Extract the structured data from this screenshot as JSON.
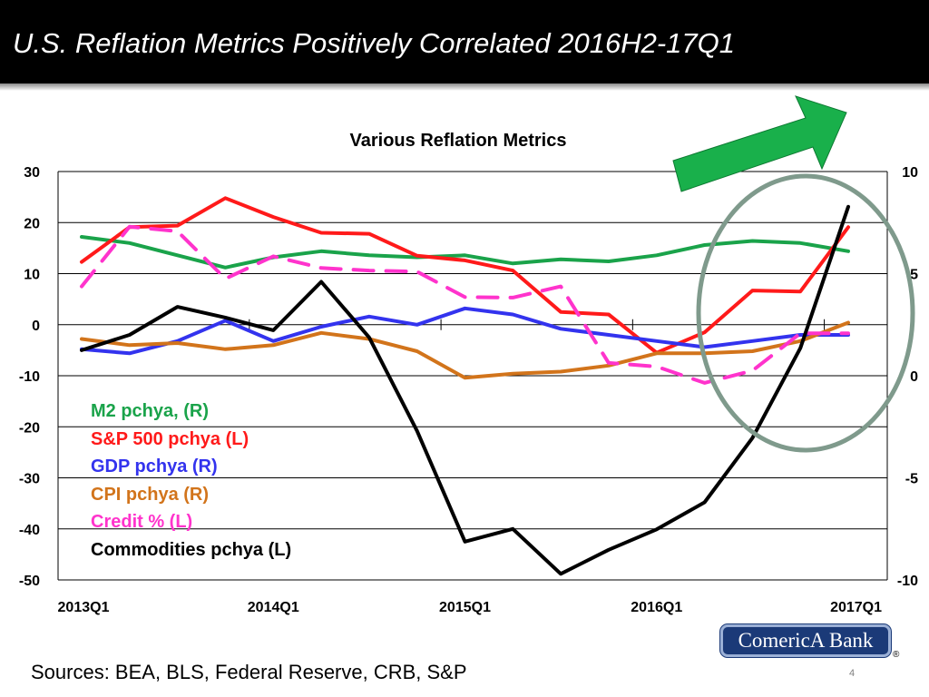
{
  "slide": {
    "title": "U.S. Reflation Metrics Positively Correlated 2016H2-17Q1",
    "sources": "Sources: BEA, BLS, Federal Reserve, CRB, S&P",
    "page_number": "4",
    "logo_text": "ComericA Bank",
    "registered_mark": "®"
  },
  "colors": {
    "m2": "#1aa34a",
    "sp500": "#ff1a1a",
    "gdp": "#3333ee",
    "cpi": "#d2741b",
    "credit": "#ff33cc",
    "commodities": "#000000",
    "arrow": "#19b04b",
    "ellipse": "#7f9a8c"
  },
  "chart_data": {
    "type": "line",
    "title": "Various Reflation Metrics",
    "categories": [
      "2013Q1",
      "2013Q2",
      "2013Q3",
      "2013Q4",
      "2014Q1",
      "2014Q2",
      "2014Q3",
      "2014Q4",
      "2015Q1",
      "2015Q2",
      "2015Q3",
      "2015Q4",
      "2016Q1",
      "2016Q2",
      "2016Q3",
      "2016Q4",
      "2017Q1"
    ],
    "x_tick_labels": [
      "2013Q1",
      "2014Q1",
      "2015Q1",
      "2016Q1",
      "2017Q1"
    ],
    "left_axis": {
      "range": [
        -50,
        30
      ],
      "ticks": [
        "30",
        "20",
        "10",
        "0",
        "-10",
        "-20",
        "-30",
        "-40",
        "-50"
      ]
    },
    "right_axis": {
      "range": [
        -10,
        10
      ],
      "ticks": [
        "10",
        "5",
        "0",
        "-5",
        "-10"
      ]
    },
    "series": [
      {
        "name": "M2 pchya, (R)",
        "key": "m2",
        "axis": "right",
        "dash": false,
        "values": [
          6.8,
          6.5,
          5.9,
          5.3,
          5.8,
          6.1,
          5.9,
          5.8,
          5.9,
          5.5,
          5.7,
          5.6,
          5.9,
          6.4,
          6.6,
          6.5,
          6.1
        ]
      },
      {
        "name": "S&P 500 pchya (L)",
        "key": "sp500",
        "axis": "left",
        "dash": false,
        "values": [
          12.3,
          19.1,
          19.4,
          24.8,
          21.1,
          18.0,
          17.8,
          13.5,
          12.6,
          10.6,
          2.5,
          2.0,
          -5.5,
          -1.5,
          6.7,
          6.5,
          19.1
        ]
      },
      {
        "name": "GDP pchya (R)",
        "key": "gdp",
        "axis": "right",
        "dash": false,
        "values": [
          1.3,
          1.1,
          1.7,
          2.7,
          1.7,
          2.4,
          2.9,
          2.5,
          3.3,
          3.0,
          2.3,
          2.0,
          1.7,
          1.4,
          1.7,
          2.0,
          2.0
        ]
      },
      {
        "name": "CPI pchya (R)",
        "key": "cpi",
        "axis": "right",
        "dash": false,
        "values": [
          1.8,
          1.5,
          1.6,
          1.3,
          1.5,
          2.1,
          1.8,
          1.2,
          -0.1,
          0.1,
          0.2,
          0.5,
          1.1,
          1.1,
          1.2,
          1.7,
          2.6
        ]
      },
      {
        "name": "Credit % (L)",
        "key": "credit",
        "axis": "left",
        "dash": true,
        "values": [
          7.5,
          19.2,
          18.3,
          9.0,
          13.4,
          11.1,
          10.6,
          10.4,
          5.4,
          5.3,
          7.5,
          -7.5,
          -8.2,
          -11.4,
          -9.0,
          -1.7,
          -1.7
        ]
      },
      {
        "name": "Commodities pchya (L)",
        "key": "commodities",
        "axis": "left",
        "dash": false,
        "values": [
          -5.0,
          -2.0,
          3.5,
          1.4,
          -1.1,
          8.4,
          -2.5,
          -20.8,
          -42.5,
          -40.0,
          -48.8,
          -44.1,
          -40.1,
          -34.8,
          -22.2,
          -4.6,
          23.1
        ]
      }
    ]
  }
}
